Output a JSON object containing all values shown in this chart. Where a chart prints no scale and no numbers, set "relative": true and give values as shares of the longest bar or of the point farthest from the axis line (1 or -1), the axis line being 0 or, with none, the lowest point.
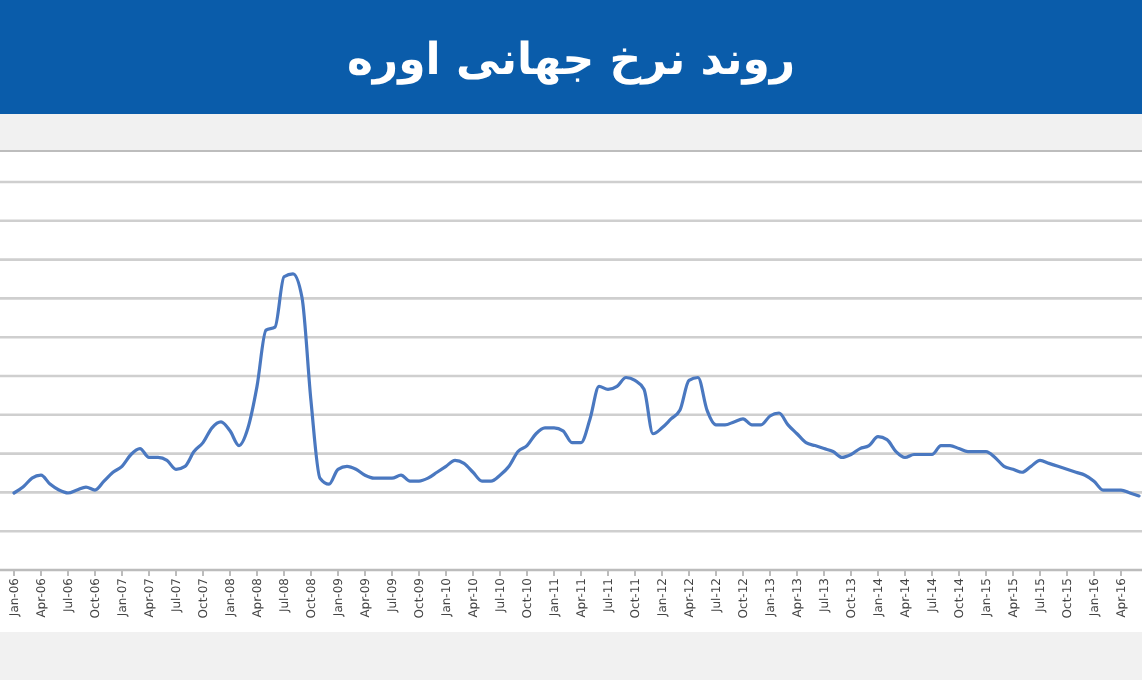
{
  "chart_data": {
    "type": "line",
    "title": "روند نرخ جهانی اوره",
    "relative": true,
    "grid": true,
    "marker": "none",
    "line_style": "solid",
    "categories": [
      "Jan-06",
      null,
      null,
      "Apr-06",
      null,
      null,
      "Jul-06",
      null,
      null,
      "Oct-06",
      null,
      null,
      "Jan-07",
      null,
      null,
      "Apr-07",
      null,
      null,
      "Jul-07",
      null,
      null,
      "Oct-07",
      null,
      null,
      "Jan-08",
      null,
      null,
      "Apr-08",
      null,
      null,
      "Jul-08",
      null,
      null,
      "Oct-08",
      null,
      null,
      "Jan-09",
      null,
      null,
      "Apr-09",
      null,
      null,
      "Jul-09",
      null,
      null,
      "Oct-09",
      null,
      null,
      "Jan-10",
      null,
      null,
      "Apr-10",
      null,
      null,
      "Jul-10",
      null,
      null,
      "Oct-10",
      null,
      null,
      "Jan-11",
      null,
      null,
      "Apr-11",
      null,
      null,
      "Jul-11",
      null,
      null,
      "Oct-11",
      null,
      null,
      "Jan-12",
      null,
      null,
      "Apr-12",
      null,
      null,
      "Jul-12",
      null,
      null,
      "Oct-12",
      null,
      null,
      "Jan-13",
      null,
      null,
      "Apr-13",
      null,
      null,
      "Jul-13",
      null,
      null,
      "Oct-13",
      null,
      null,
      "Jan-14",
      null,
      null,
      "Apr-14",
      null,
      null,
      "Jul-14",
      null,
      null,
      "Oct-14",
      null,
      null,
      "Jan-15",
      null,
      null,
      "Apr-15",
      null,
      null,
      "Jul-15",
      null,
      null,
      "Oct-15",
      null,
      null,
      "Jan-16",
      null,
      null,
      "Apr-16",
      null,
      null
    ],
    "series": [
      {
        "color": "#4a78c0",
        "values": [
          0.26,
          0.28,
          0.31,
          0.32,
          0.29,
          0.27,
          0.26,
          0.27,
          0.28,
          0.27,
          0.3,
          0.33,
          0.35,
          0.39,
          0.41,
          0.38,
          0.38,
          0.37,
          0.34,
          0.35,
          0.4,
          0.43,
          0.48,
          0.5,
          0.47,
          0.42,
          0.48,
          0.62,
          0.81,
          0.82,
          0.99,
          1.0,
          0.92,
          0.57,
          0.31,
          0.29,
          0.34,
          0.35,
          0.34,
          0.32,
          0.31,
          0.31,
          0.31,
          0.32,
          0.3,
          0.3,
          0.31,
          0.33,
          0.35,
          0.37,
          0.36,
          0.33,
          0.3,
          0.3,
          0.32,
          0.35,
          0.4,
          0.42,
          0.46,
          0.48,
          0.48,
          0.47,
          0.43,
          0.43,
          0.51,
          0.62,
          0.61,
          0.62,
          0.65,
          0.64,
          0.61,
          0.46,
          0.48,
          0.51,
          0.54,
          0.64,
          0.65,
          0.54,
          0.49,
          0.49,
          0.5,
          0.51,
          0.49,
          0.49,
          0.52,
          0.53,
          0.49,
          0.46,
          0.43,
          0.42,
          0.41,
          0.4,
          0.38,
          0.39,
          0.41,
          0.42,
          0.45,
          0.44,
          0.4,
          0.38,
          0.39,
          0.39,
          0.39,
          0.42,
          0.42,
          0.41,
          0.4,
          0.4,
          0.4,
          0.38,
          0.35,
          0.34,
          0.33,
          0.35,
          0.37,
          0.36,
          0.35,
          0.34,
          0.33,
          0.32,
          0.3,
          0.27,
          0.27,
          0.27,
          0.26,
          0.25
        ]
      }
    ]
  }
}
